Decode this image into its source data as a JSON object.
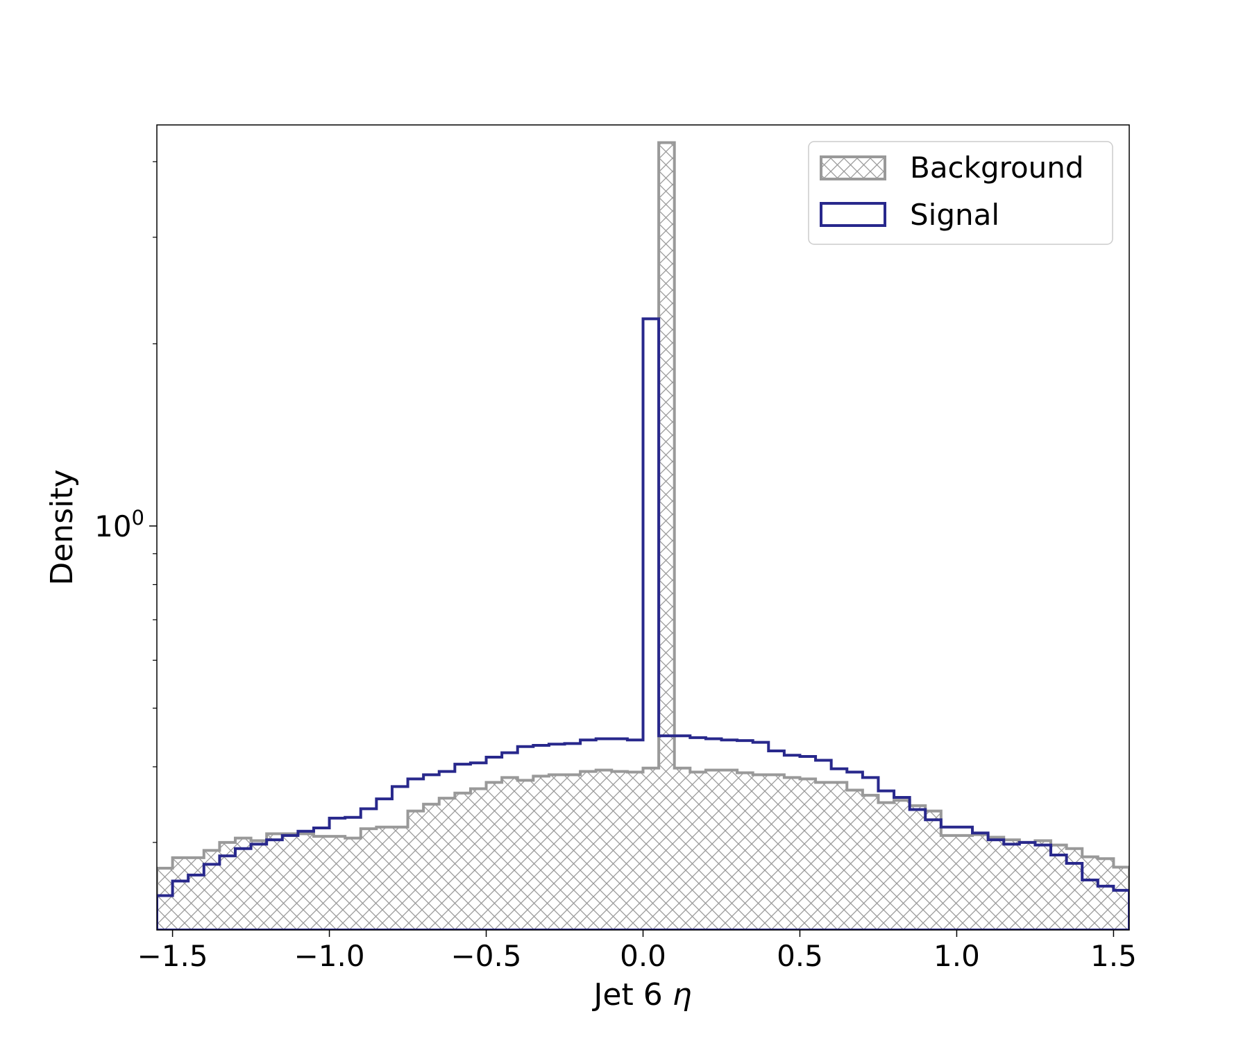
{
  "chart_data": {
    "type": "histogram",
    "title": "",
    "xlabel": "Jet 6",
    "xlabel_symbol": "η",
    "ylabel": "Density",
    "yscale": "log",
    "xlim": [
      -1.55,
      1.55
    ],
    "ylim": [
      0.215,
      4.6
    ],
    "grid": false,
    "legend_position": "top-right",
    "x_ticks": [
      -1.5,
      -1.0,
      -0.5,
      0.0,
      0.5,
      1.0,
      1.5
    ],
    "x_tick_labels": [
      "−1.5",
      "−1.0",
      "−0.5",
      "0.0",
      "0.5",
      "1.0",
      "1.5"
    ],
    "y_major_ticks": [
      1.0
    ],
    "y_major_tick_labels": [
      {
        "base": "10",
        "exp": "0"
      }
    ],
    "y_minor_ticks": [
      0.3,
      0.4,
      0.5,
      0.6,
      0.7,
      0.8,
      0.9,
      2.0,
      3.0,
      4.0
    ],
    "bin_edges": [
      -1.55,
      -1.5,
      -1.45,
      -1.4,
      -1.35,
      -1.3,
      -1.25,
      -1.2,
      -1.15,
      -1.1,
      -1.05,
      -1.0,
      -0.95,
      -0.9,
      -0.85,
      -0.8,
      -0.75,
      -0.7,
      -0.65,
      -0.6,
      -0.55,
      -0.5,
      -0.45,
      -0.4,
      -0.35,
      -0.3,
      -0.25,
      -0.2,
      -0.15,
      -0.1,
      -0.05,
      0.0,
      0.05,
      0.1,
      0.15,
      0.2,
      0.25,
      0.3,
      0.35,
      0.4,
      0.45,
      0.5,
      0.55,
      0.6,
      0.65,
      0.7,
      0.75,
      0.8,
      0.85,
      0.9,
      0.95,
      1.0,
      1.05,
      1.1,
      1.15,
      1.2,
      1.25,
      1.3,
      1.35,
      1.4,
      1.45,
      1.5,
      1.55
    ],
    "series": [
      {
        "name": "Background",
        "style": "hatched",
        "color": "#999999",
        "values": [
          0.272,
          0.283,
          0.283,
          0.291,
          0.3,
          0.305,
          0.302,
          0.31,
          0.31,
          0.31,
          0.307,
          0.307,
          0.305,
          0.316,
          0.318,
          0.318,
          0.338,
          0.347,
          0.355,
          0.362,
          0.368,
          0.377,
          0.384,
          0.38,
          0.386,
          0.388,
          0.388,
          0.393,
          0.395,
          0.393,
          0.392,
          0.398,
          4.3,
          0.398,
          0.392,
          0.395,
          0.395,
          0.391,
          0.388,
          0.388,
          0.384,
          0.382,
          0.377,
          0.377,
          0.366,
          0.359,
          0.349,
          0.352,
          0.345,
          0.338,
          0.308,
          0.308,
          0.309,
          0.306,
          0.303,
          0.3,
          0.302,
          0.297,
          0.293,
          0.284,
          0.282,
          0.273
        ]
      },
      {
        "name": "Signal",
        "style": "step",
        "color": "#28288c",
        "values": [
          0.245,
          0.259,
          0.265,
          0.276,
          0.285,
          0.293,
          0.298,
          0.303,
          0.308,
          0.313,
          0.317,
          0.329,
          0.33,
          0.341,
          0.354,
          0.371,
          0.382,
          0.388,
          0.393,
          0.404,
          0.406,
          0.415,
          0.422,
          0.432,
          0.434,
          0.436,
          0.437,
          0.443,
          0.445,
          0.445,
          0.443,
          2.2,
          0.45,
          0.45,
          0.447,
          0.445,
          0.443,
          0.442,
          0.439,
          0.425,
          0.418,
          0.416,
          0.41,
          0.397,
          0.392,
          0.384,
          0.365,
          0.356,
          0.34,
          0.327,
          0.318,
          0.318,
          0.311,
          0.303,
          0.298,
          0.3,
          0.297,
          0.286,
          0.277,
          0.26,
          0.254,
          0.25
        ]
      }
    ]
  }
}
